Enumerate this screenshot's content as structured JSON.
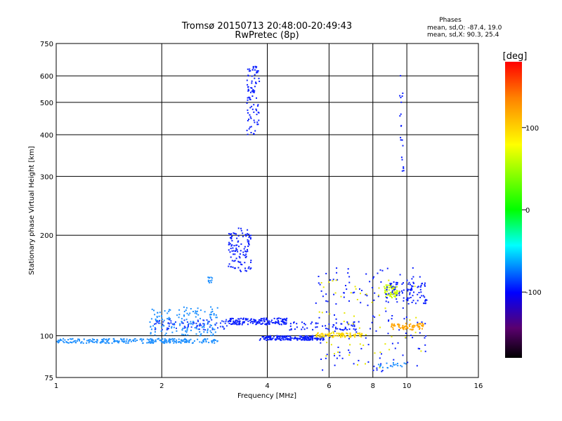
{
  "chart_data": {
    "type": "scatter",
    "title": "Tromsø 20150713 20:48:00-20:49:43",
    "subtitle": "RwPretec (8p)",
    "xlabel": "Frequency [MHz]",
    "ylabel": "Stationary phase Virtual Height [km]",
    "x_scale": "log",
    "y_scale": "log",
    "xlim": [
      1,
      16
    ],
    "ylim": [
      75,
      750
    ],
    "x_ticks": [
      1,
      2,
      4,
      6,
      8,
      10,
      16
    ],
    "y_ticks": [
      75,
      100,
      200,
      300,
      400,
      500,
      600,
      750
    ],
    "grid": true,
    "phase_legend": {
      "title": "Phases",
      "line_o": "mean, sd,O: -87.4, 19.0",
      "line_x": "mean, sd,X:  90.3, 25.4"
    },
    "colorbar": {
      "label": "[deg]",
      "min": -180,
      "max": 180,
      "ticks": [
        100,
        0,
        -100
      ],
      "colormap": "rainbow"
    },
    "clusters": [
      {
        "x0": 1.0,
        "x1": 2.9,
        "y0": 95,
        "y1": 98,
        "n": 260,
        "color": "#1e90ff"
      },
      {
        "x0": 1.85,
        "x1": 2.9,
        "y0": 100,
        "y1": 122,
        "n": 150,
        "color": "#1e90ff"
      },
      {
        "x0": 1.9,
        "x1": 3.1,
        "y0": 104,
        "y1": 112,
        "n": 80,
        "color": "#1e40ff"
      },
      {
        "x0": 3.1,
        "x1": 4.6,
        "y0": 108,
        "y1": 113,
        "n": 160,
        "color": "#0a1eff"
      },
      {
        "x0": 3.8,
        "x1": 5.8,
        "y0": 97,
        "y1": 100,
        "n": 180,
        "color": "#0a1eff"
      },
      {
        "x0": 5.5,
        "x1": 7.5,
        "y0": 99,
        "y1": 102,
        "n": 90,
        "color": "#ffd700"
      },
      {
        "x0": 3.1,
        "x1": 3.6,
        "y0": 155,
        "y1": 210,
        "n": 110,
        "color": "#0a1eff"
      },
      {
        "x0": 3.5,
        "x1": 3.8,
        "y0": 400,
        "y1": 640,
        "n": 90,
        "color": "#0a1eff"
      },
      {
        "x0": 4.5,
        "x1": 7.2,
        "y0": 104,
        "y1": 110,
        "n": 60,
        "color": "#0a1eff"
      },
      {
        "x0": 8.6,
        "x1": 9.4,
        "y0": 130,
        "y1": 142,
        "n": 70,
        "color": "#c8ff00"
      },
      {
        "x0": 9.0,
        "x1": 11.2,
        "y0": 104,
        "y1": 109,
        "n": 70,
        "color": "#ffa500"
      },
      {
        "x0": 9.5,
        "x1": 9.8,
        "y0": 300,
        "y1": 620,
        "n": 20,
        "color": "#0a1eff"
      },
      {
        "x0": 8.7,
        "x1": 11.4,
        "y0": 125,
        "y1": 145,
        "n": 90,
        "color": "#0a1eff"
      },
      {
        "x0": 5.5,
        "x1": 11.5,
        "y0": 78,
        "y1": 160,
        "n": 140,
        "color": "#0a1eff"
      },
      {
        "x0": 5.5,
        "x1": 11.0,
        "y0": 80,
        "y1": 150,
        "n": 60,
        "color": "#e6e600"
      },
      {
        "x0": 2.7,
        "x1": 2.8,
        "y0": 144,
        "y1": 150,
        "n": 12,
        "color": "#1e90ff"
      },
      {
        "x0": 8.3,
        "x1": 10.0,
        "y0": 80,
        "y1": 83,
        "n": 20,
        "color": "#1e90ff"
      }
    ]
  }
}
